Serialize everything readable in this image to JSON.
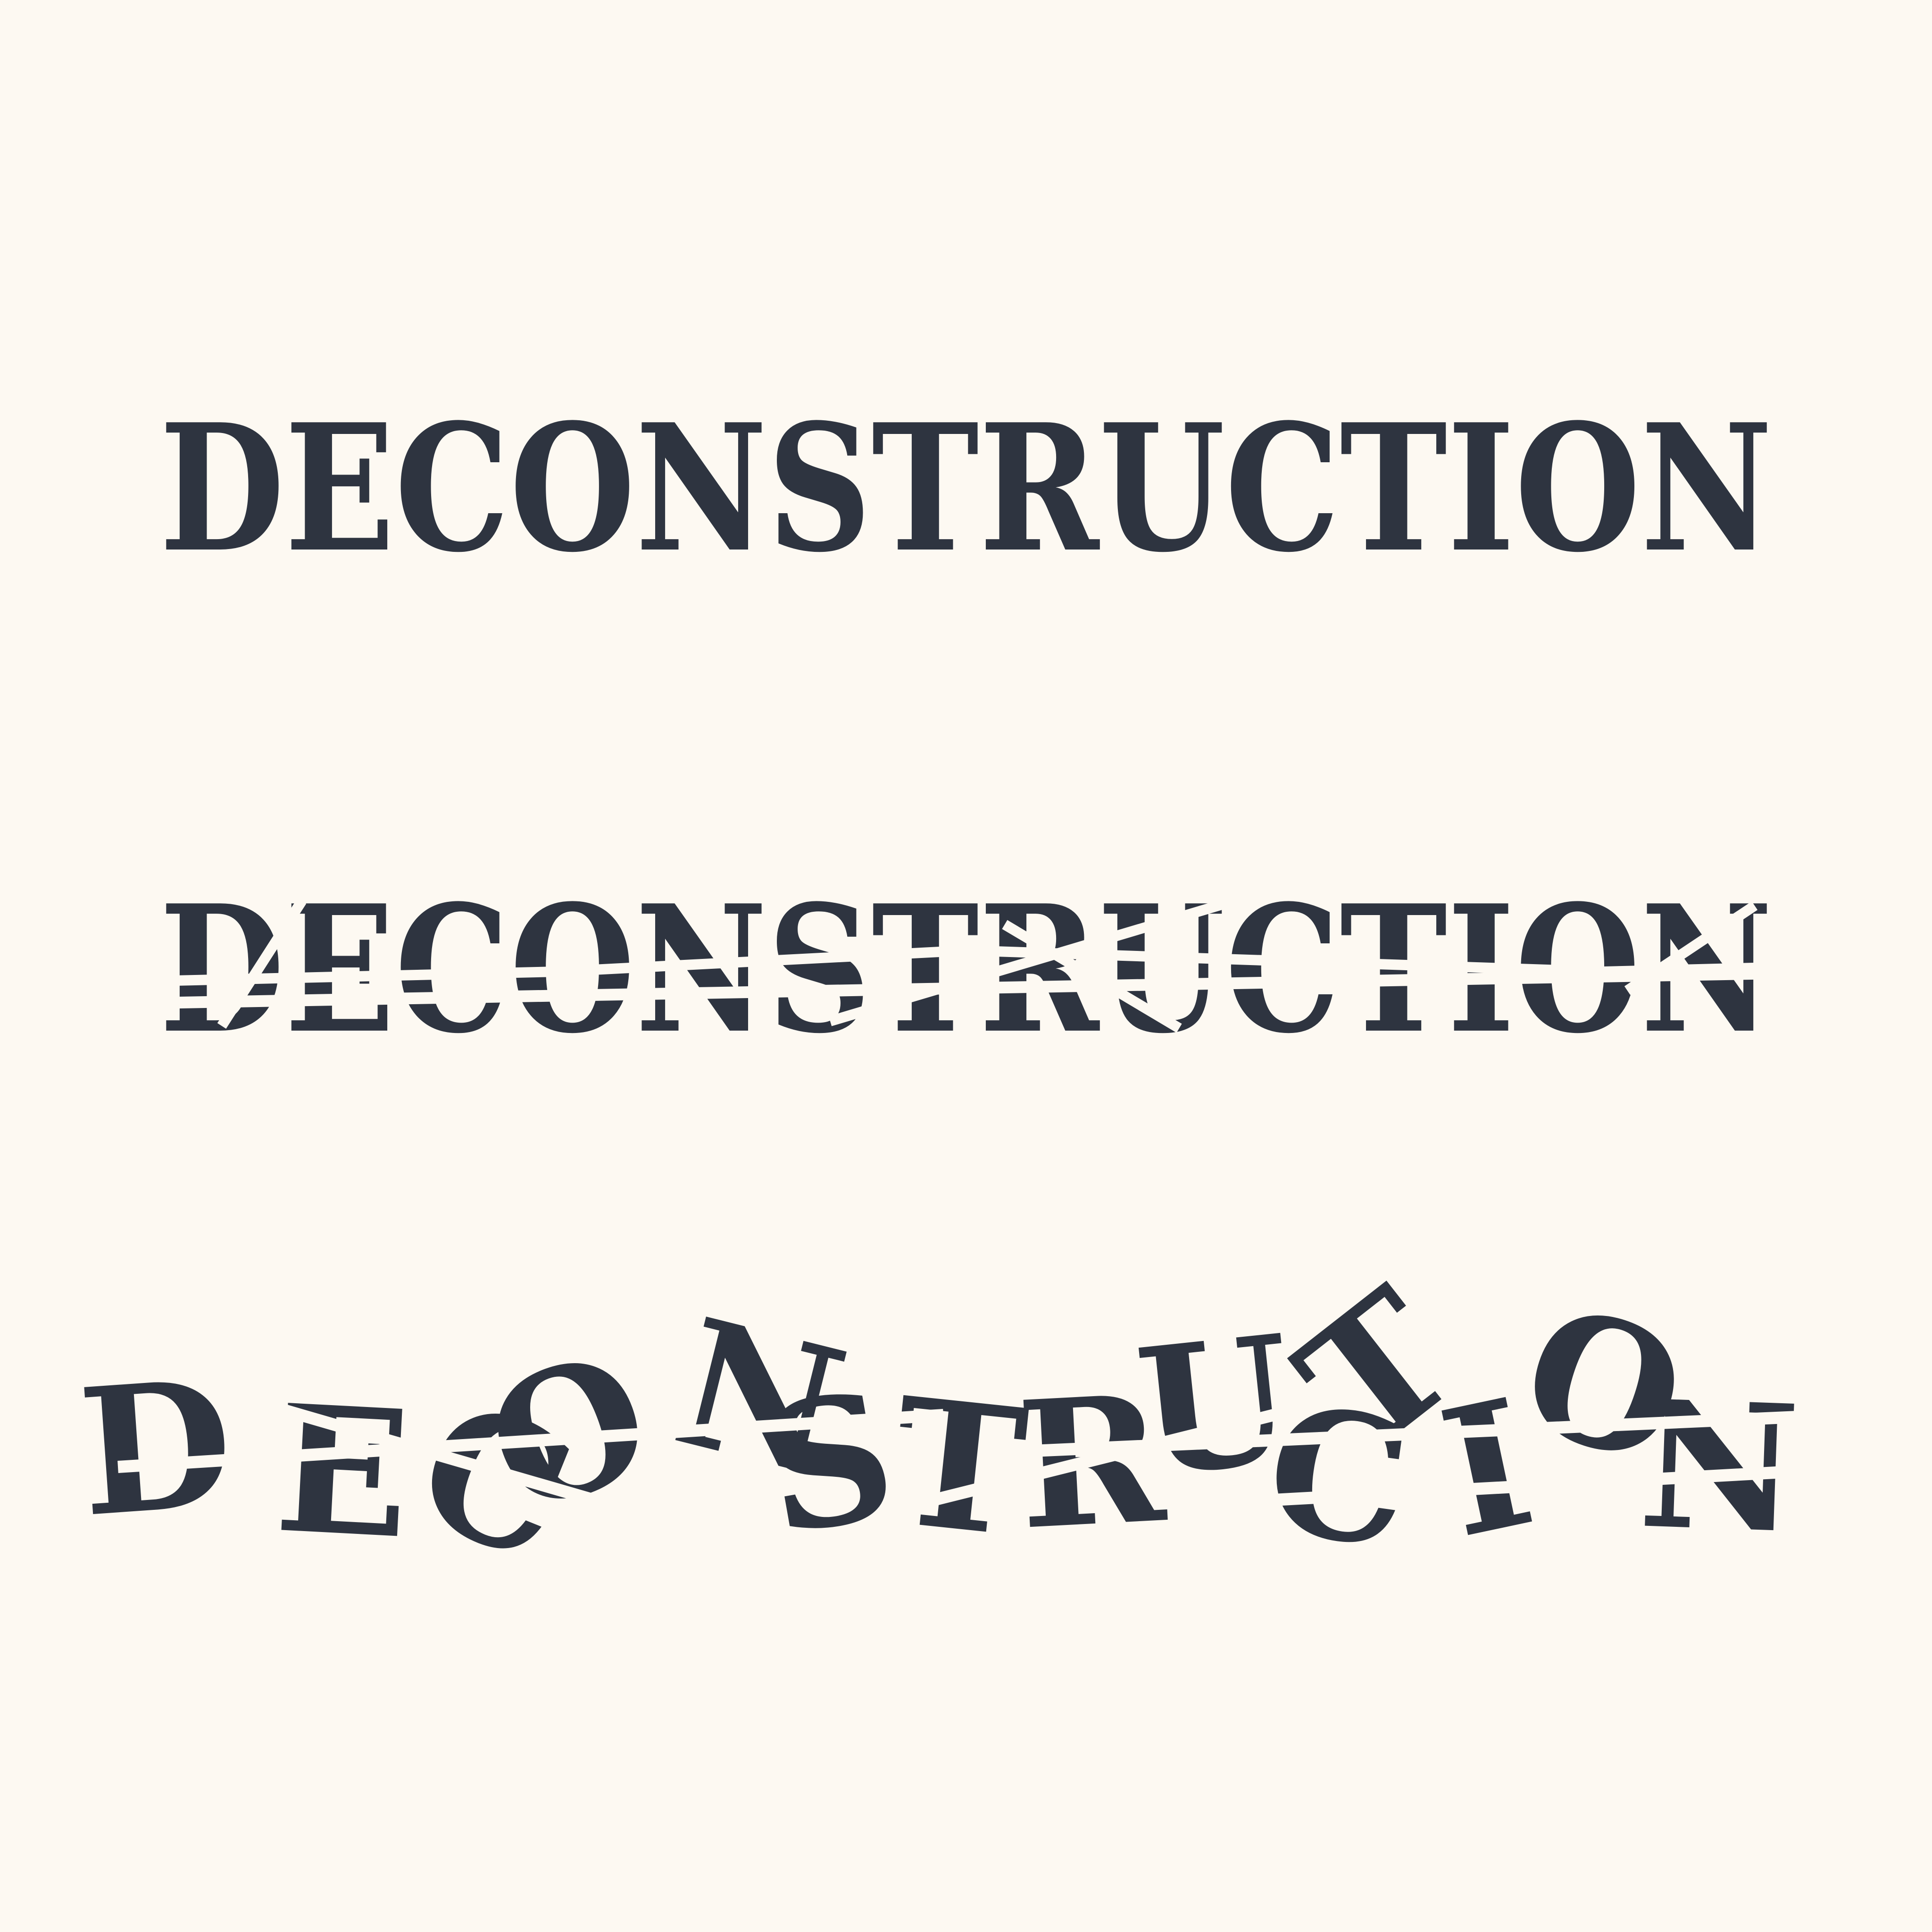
{
  "background": "#fdf9f2",
  "ink": "#2e3440",
  "rows": [
    {
      "id": "intact",
      "text": "DECONSTRUCTION"
    },
    {
      "id": "sliced",
      "text": "DECONSTRUCTION"
    },
    {
      "id": "scattered",
      "text": "DECONSTRUCTION"
    }
  ]
}
